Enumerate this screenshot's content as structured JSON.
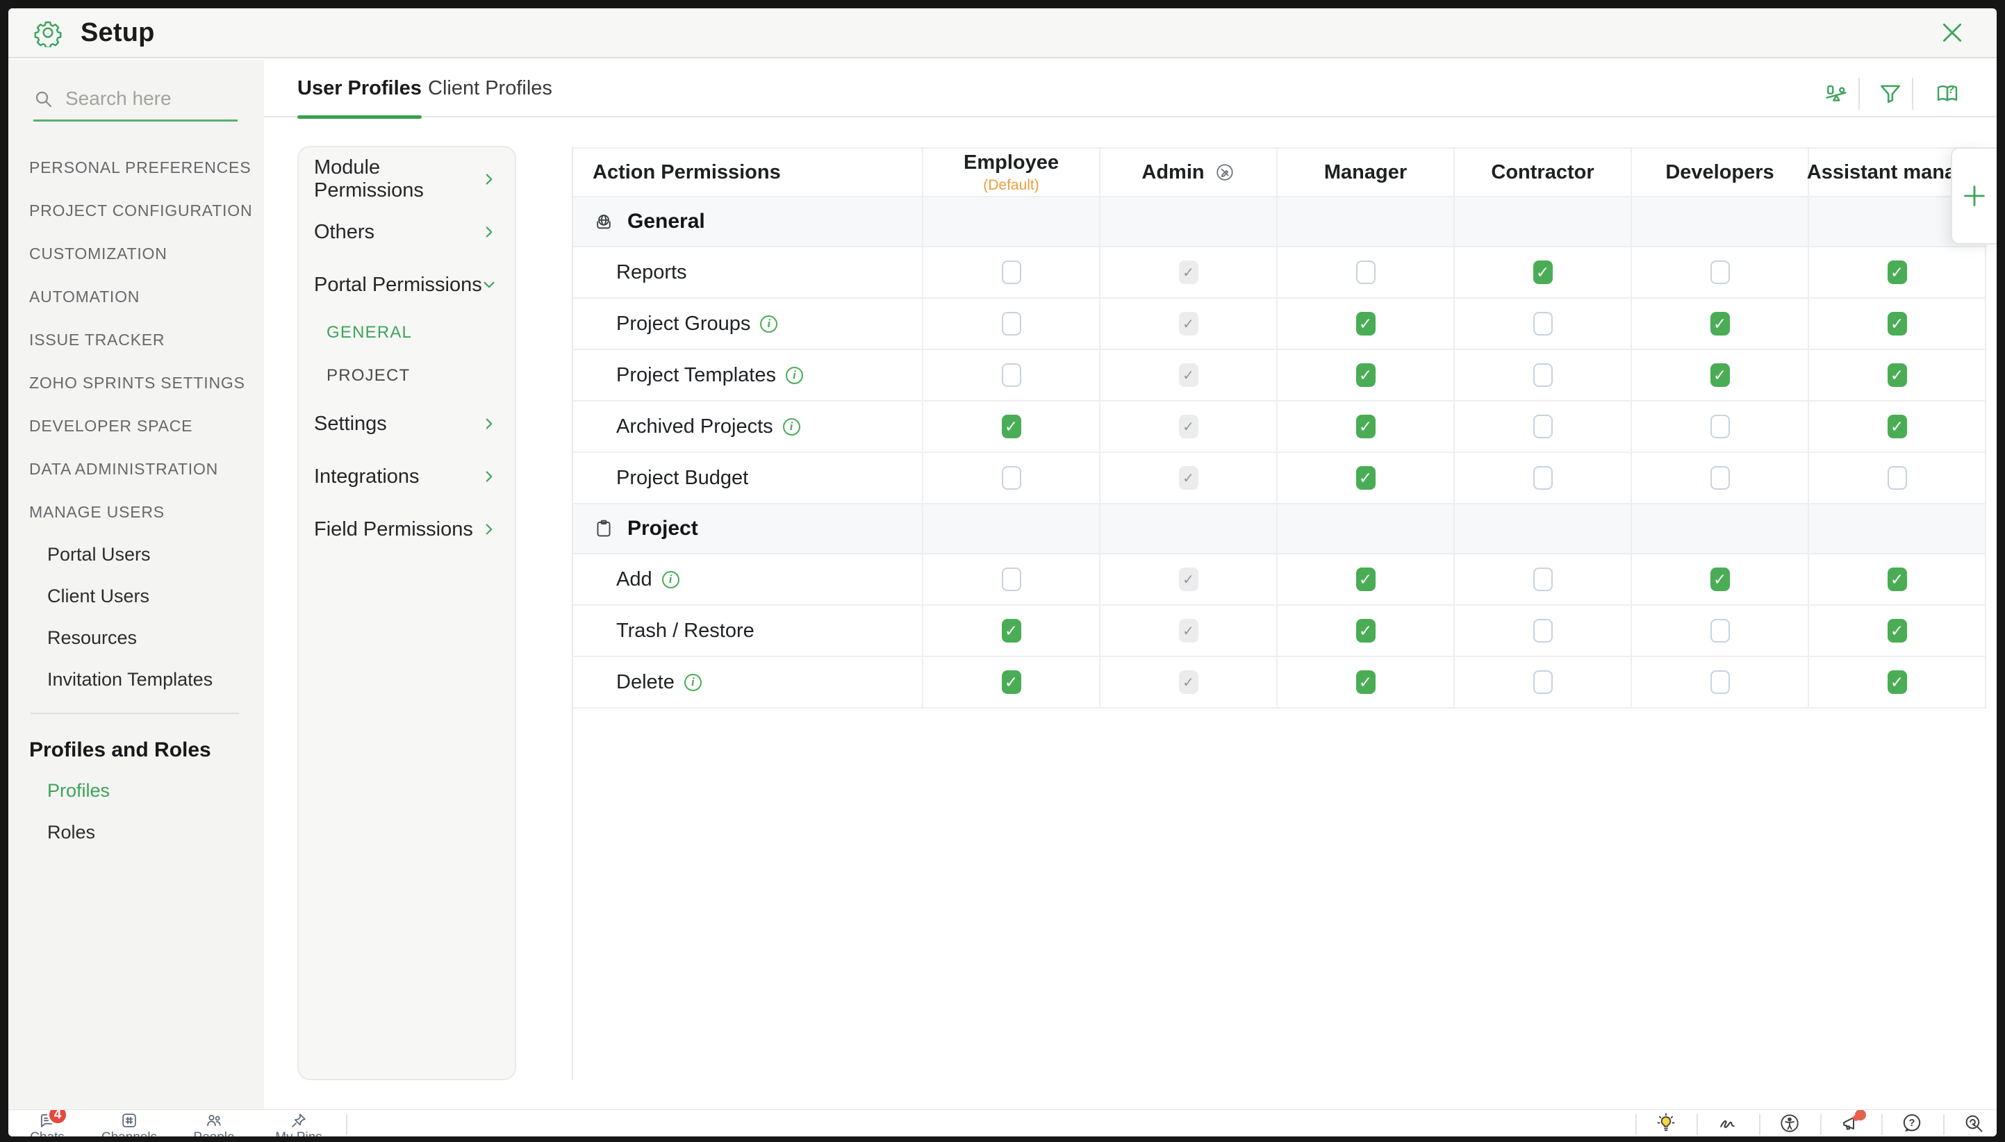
{
  "colors": {
    "accent_green": "#3da45b",
    "checkbox_green": "#4aad55",
    "default_orange": "#ef9d3a",
    "badge_red": "#e5493d"
  },
  "topbar": {
    "title": "Setup"
  },
  "sidebar": {
    "search_placeholder": "Search here",
    "sections": [
      "PERSONAL PREFERENCES",
      "PROJECT CONFIGURATION",
      "CUSTOMIZATION",
      "AUTOMATION",
      "ISSUE TRACKER",
      "ZOHO SPRINTS SETTINGS",
      "DEVELOPER SPACE",
      "DATA ADMINISTRATION",
      "MANAGE USERS"
    ],
    "manage_users_children": [
      "Portal Users",
      "Client Users",
      "Resources",
      "Invitation Templates"
    ],
    "group": {
      "heading": "Profiles and Roles",
      "children": [
        {
          "label": "Profiles",
          "active": true
        },
        {
          "label": "Roles",
          "active": false
        }
      ]
    }
  },
  "tabs": [
    {
      "label": "User Profiles",
      "active": true
    },
    {
      "label": "Client Profiles",
      "active": false
    }
  ],
  "toolbar": {
    "icons": [
      {
        "name": "compare-icon"
      },
      {
        "name": "filter-icon"
      },
      {
        "name": "guide-icon"
      }
    ]
  },
  "permissions_nav": {
    "items": [
      {
        "label": "Module Permissions",
        "chevron": "right"
      },
      {
        "label": "Others",
        "chevron": "right"
      },
      {
        "label": "Portal Permissions",
        "chevron": "down",
        "children": [
          {
            "label": "GENERAL",
            "active": true
          },
          {
            "label": "PROJECT",
            "active": false
          }
        ]
      },
      {
        "label": "Settings",
        "chevron": "right"
      },
      {
        "label": "Integrations",
        "chevron": "right"
      },
      {
        "label": "Field Permissions",
        "chevron": "right"
      }
    ]
  },
  "table": {
    "first_column_header": "Action Permissions",
    "add_profile_label": "+",
    "roles": [
      {
        "label": "Employee",
        "subtitle": "(Default)"
      },
      {
        "label": "Admin",
        "icon": "no-edit-icon"
      },
      {
        "label": "Manager"
      },
      {
        "label": "Contractor"
      },
      {
        "label": "Developers"
      },
      {
        "label": "Assistant manager"
      }
    ],
    "sections": [
      {
        "label": "General",
        "icon": "globe-icon",
        "rows": [
          {
            "label": "Reports",
            "info": false,
            "checks": [
              "unchecked",
              "locked",
              "unchecked",
              "checked",
              "unchecked",
              "checked"
            ]
          },
          {
            "label": "Project Groups",
            "info": true,
            "checks": [
              "unchecked",
              "locked",
              "checked",
              "unchecked",
              "checked",
              "checked"
            ]
          },
          {
            "label": "Project Templates",
            "info": true,
            "checks": [
              "unchecked",
              "locked",
              "checked",
              "unchecked",
              "checked",
              "checked"
            ]
          },
          {
            "label": "Archived Projects",
            "info": true,
            "checks": [
              "checked",
              "locked",
              "checked",
              "unchecked",
              "unchecked",
              "checked"
            ]
          },
          {
            "label": "Project Budget",
            "info": false,
            "checks": [
              "unchecked",
              "locked",
              "checked",
              "unchecked",
              "unchecked",
              "unchecked"
            ]
          }
        ]
      },
      {
        "label": "Project",
        "icon": "clipboard-icon",
        "rows": [
          {
            "label": "Add",
            "info": true,
            "checks": [
              "unchecked",
              "locked",
              "checked",
              "unchecked",
              "checked",
              "checked"
            ]
          },
          {
            "label": "Trash / Restore",
            "info": false,
            "checks": [
              "checked",
              "locked",
              "checked",
              "unchecked",
              "unchecked",
              "checked"
            ]
          },
          {
            "label": "Delete",
            "info": true,
            "checks": [
              "checked",
              "locked",
              "checked",
              "unchecked",
              "unchecked",
              "checked"
            ]
          }
        ]
      }
    ]
  },
  "bottombar": {
    "left_items": [
      {
        "label": "Chats",
        "icon": "chat-icon",
        "badge": "4"
      },
      {
        "label": "Channels",
        "icon": "hash-icon"
      },
      {
        "label": "People",
        "icon": "people-icon"
      },
      {
        "label": "My Pins",
        "icon": "pin-icon"
      }
    ],
    "right_items": [
      {
        "icon": "bulb-icon"
      },
      {
        "icon": "zia-icon"
      },
      {
        "icon": "accessibility-icon"
      },
      {
        "icon": "announce-icon",
        "badge_dot": true
      },
      {
        "icon": "help-icon"
      },
      {
        "icon": "zoom-search-icon"
      }
    ]
  }
}
